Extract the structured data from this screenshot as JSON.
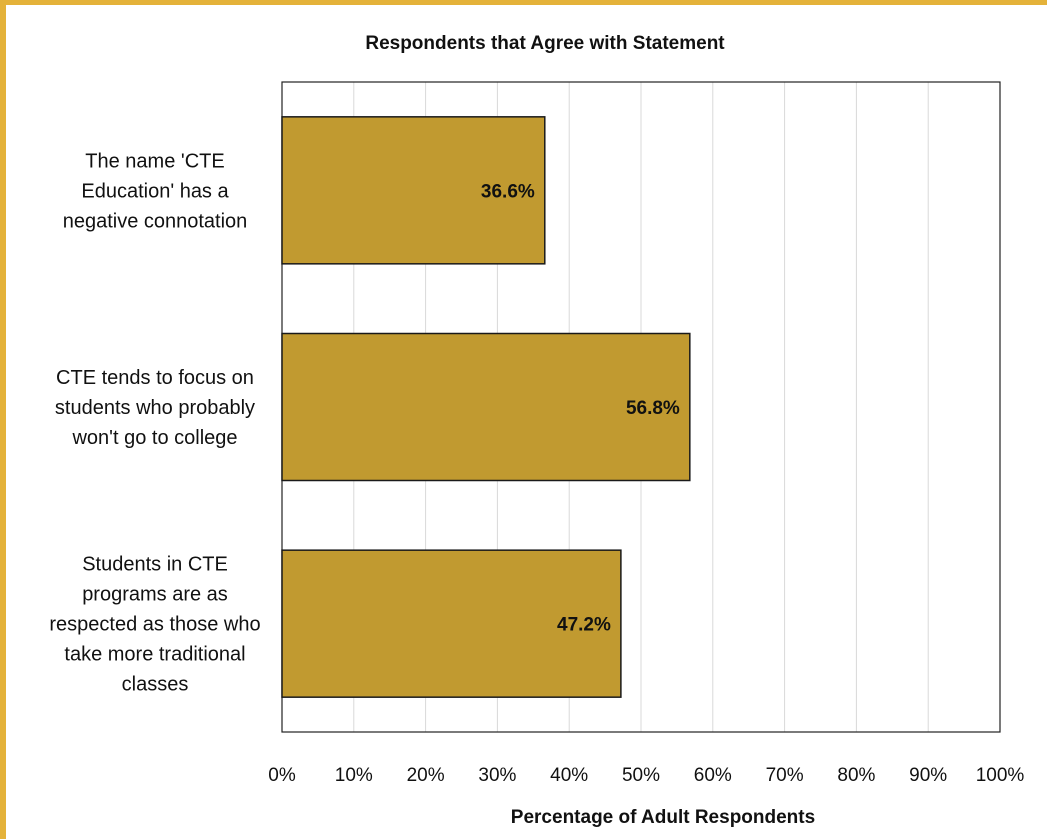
{
  "chart_data": {
    "type": "bar",
    "orientation": "horizontal",
    "title": "Respondents that Agree with Statement",
    "xlabel": "Percentage of Adult Respondents",
    "ylabel": "",
    "categories": [
      [
        "The name 'CTE",
        "Education' has a",
        "negative connotation"
      ],
      [
        "CTE tends to focus on",
        "students who probably",
        "won't go to college"
      ],
      [
        "Students in CTE",
        "programs are as",
        "respected as those who",
        "take more traditional",
        "classes"
      ]
    ],
    "values": [
      36.6,
      56.8,
      47.2
    ],
    "data_labels": [
      "36.6%",
      "56.8%",
      "47.2%"
    ],
    "xlim": [
      0,
      100
    ],
    "ticks": [
      0,
      10,
      20,
      30,
      40,
      50,
      60,
      70,
      80,
      90,
      100
    ],
    "tick_labels": [
      "0%",
      "10%",
      "20%",
      "30%",
      "40%",
      "50%",
      "60%",
      "70%",
      "80%",
      "90%",
      "100%"
    ],
    "grid": true,
    "legend": "none",
    "bar_color": "#c19a30",
    "frame_color": "#e4b23a"
  }
}
